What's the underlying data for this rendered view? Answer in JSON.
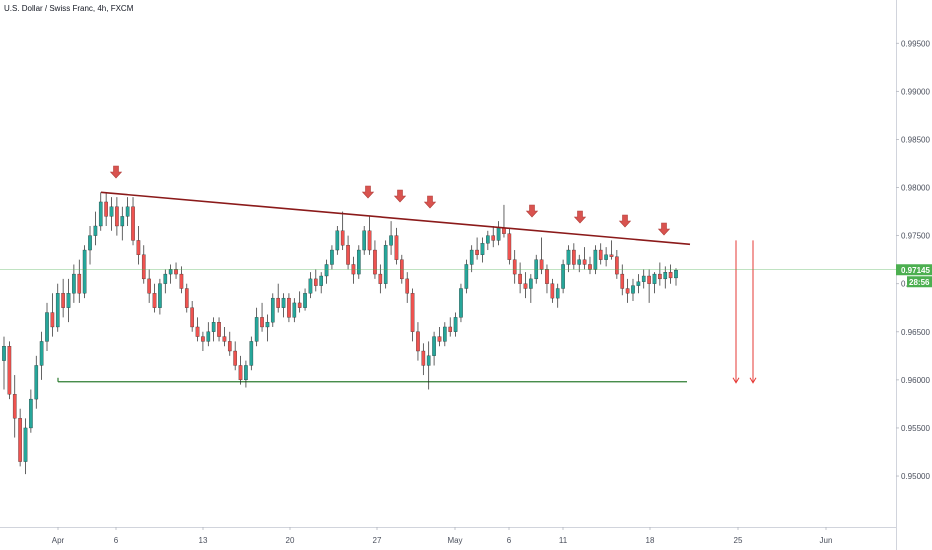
{
  "title": "U.S. Dollar / Swiss Franc, 4h, FXCM",
  "chart_data": {
    "type": "candlestick",
    "title": "U.S. Dollar / Swiss Franc, 4h, FXCM",
    "y_ticks": [
      "0.99500",
      "0.99000",
      "0.98500",
      "0.98000",
      "0.97500",
      "0.97000",
      "0.96500",
      "0.96000",
      "0.95500",
      "0.95000"
    ],
    "ylim": [
      0.9447,
      0.9995
    ],
    "x_ticks": [
      "Apr",
      "6",
      "13",
      "20",
      "27",
      "May",
      "6",
      "11",
      "18",
      "25",
      "Jun"
    ],
    "current_price": "0.97145",
    "countdown": "28:56",
    "colors": {
      "up": "#26a69a",
      "down": "#ef5350",
      "wick": "#222222"
    },
    "annotations": {
      "resistance_line": {
        "from": [
          "Apr 5",
          0.9795
        ],
        "to": [
          "May 21",
          0.9741
        ],
        "color": "#8b1a1a"
      },
      "support_line": {
        "from": [
          "Apr 1",
          0.9598
        ],
        "to": [
          "May 21",
          0.9598
        ],
        "color": "#2e7d32"
      },
      "top_markers": [
        "Apr 6",
        "Apr 26",
        "Apr 28",
        "Apr 30",
        "May 8",
        "May 13",
        "May 16",
        "May 19"
      ],
      "down_arrows": [
        [
          "May 24",
          0.9745,
          0.9597
        ],
        [
          "May 25",
          0.9745,
          0.9597
        ]
      ]
    },
    "ohlc": [
      [
        0.962,
        0.9645,
        0.959,
        0.9635
      ],
      [
        0.9635,
        0.964,
        0.958,
        0.9585
      ],
      [
        0.9585,
        0.9605,
        0.954,
        0.956
      ],
      [
        0.956,
        0.957,
        0.951,
        0.9515
      ],
      [
        0.9515,
        0.956,
        0.9502,
        0.955
      ],
      [
        0.955,
        0.959,
        0.9545,
        0.958
      ],
      [
        0.958,
        0.9625,
        0.957,
        0.9615
      ],
      [
        0.9615,
        0.965,
        0.96,
        0.964
      ],
      [
        0.964,
        0.968,
        0.963,
        0.967
      ],
      [
        0.967,
        0.969,
        0.9645,
        0.9655
      ],
      [
        0.9655,
        0.97,
        0.965,
        0.969
      ],
      [
        0.969,
        0.9705,
        0.9665,
        0.9675
      ],
      [
        0.9675,
        0.9705,
        0.966,
        0.969
      ],
      [
        0.969,
        0.972,
        0.968,
        0.971
      ],
      [
        0.971,
        0.9725,
        0.968,
        0.969
      ],
      [
        0.969,
        0.974,
        0.9685,
        0.9735
      ],
      [
        0.9735,
        0.976,
        0.972,
        0.975
      ],
      [
        0.975,
        0.9775,
        0.974,
        0.976
      ],
      [
        0.976,
        0.9795,
        0.9755,
        0.9785
      ],
      [
        0.9785,
        0.9795,
        0.976,
        0.977
      ],
      [
        0.977,
        0.979,
        0.9755,
        0.978
      ],
      [
        0.978,
        0.979,
        0.975,
        0.976
      ],
      [
        0.976,
        0.978,
        0.9745,
        0.977
      ],
      [
        0.977,
        0.979,
        0.976,
        0.978
      ],
      [
        0.978,
        0.979,
        0.974,
        0.9745
      ],
      [
        0.9745,
        0.976,
        0.972,
        0.973
      ],
      [
        0.973,
        0.974,
        0.97,
        0.9705
      ],
      [
        0.9705,
        0.9715,
        0.968,
        0.969
      ],
      [
        0.969,
        0.97,
        0.967,
        0.9675
      ],
      [
        0.9675,
        0.9705,
        0.9668,
        0.97
      ],
      [
        0.97,
        0.9715,
        0.969,
        0.971
      ],
      [
        0.971,
        0.972,
        0.97,
        0.9715
      ],
      [
        0.9715,
        0.9722,
        0.9705,
        0.971
      ],
      [
        0.971,
        0.9718,
        0.969,
        0.9695
      ],
      [
        0.9695,
        0.97,
        0.967,
        0.9675
      ],
      [
        0.9675,
        0.9682,
        0.965,
        0.9655
      ],
      [
        0.9655,
        0.9665,
        0.964,
        0.9645
      ],
      [
        0.9645,
        0.965,
        0.963,
        0.964
      ],
      [
        0.964,
        0.966,
        0.9635,
        0.965
      ],
      [
        0.965,
        0.9665,
        0.964,
        0.966
      ],
      [
        0.966,
        0.9665,
        0.964,
        0.9645
      ],
      [
        0.9645,
        0.9655,
        0.9635,
        0.964
      ],
      [
        0.964,
        0.965,
        0.9625,
        0.963
      ],
      [
        0.963,
        0.964,
        0.961,
        0.9615
      ],
      [
        0.9615,
        0.9625,
        0.9595,
        0.96
      ],
      [
        0.96,
        0.962,
        0.9592,
        0.9615
      ],
      [
        0.9615,
        0.9645,
        0.961,
        0.964
      ],
      [
        0.964,
        0.9675,
        0.9635,
        0.9665
      ],
      [
        0.9665,
        0.968,
        0.965,
        0.9655
      ],
      [
        0.9655,
        0.9668,
        0.964,
        0.966
      ],
      [
        0.966,
        0.969,
        0.9655,
        0.9685
      ],
      [
        0.9685,
        0.97,
        0.967,
        0.9675
      ],
      [
        0.9675,
        0.969,
        0.9665,
        0.9685
      ],
      [
        0.9685,
        0.969,
        0.966,
        0.9665
      ],
      [
        0.9665,
        0.9685,
        0.966,
        0.968
      ],
      [
        0.968,
        0.9692,
        0.967,
        0.9675
      ],
      [
        0.9675,
        0.9695,
        0.9672,
        0.969
      ],
      [
        0.969,
        0.9712,
        0.9685,
        0.9705
      ],
      [
        0.9705,
        0.9715,
        0.9692,
        0.9698
      ],
      [
        0.9698,
        0.9712,
        0.969,
        0.9708
      ],
      [
        0.9708,
        0.9725,
        0.97,
        0.972
      ],
      [
        0.972,
        0.974,
        0.9715,
        0.9735
      ],
      [
        0.9735,
        0.976,
        0.973,
        0.9755
      ],
      [
        0.9755,
        0.9775,
        0.9735,
        0.974
      ],
      [
        0.974,
        0.975,
        0.9715,
        0.972
      ],
      [
        0.972,
        0.9728,
        0.97,
        0.971
      ],
      [
        0.971,
        0.974,
        0.9705,
        0.9735
      ],
      [
        0.9735,
        0.976,
        0.973,
        0.9755
      ],
      [
        0.9755,
        0.977,
        0.973,
        0.9735
      ],
      [
        0.9735,
        0.9745,
        0.9705,
        0.971
      ],
      [
        0.971,
        0.972,
        0.969,
        0.97
      ],
      [
        0.97,
        0.9745,
        0.9695,
        0.974
      ],
      [
        0.974,
        0.9765,
        0.973,
        0.975
      ],
      [
        0.975,
        0.9758,
        0.972,
        0.9725
      ],
      [
        0.9725,
        0.973,
        0.97,
        0.9705
      ],
      [
        0.9705,
        0.9712,
        0.968,
        0.969
      ],
      [
        0.969,
        0.9695,
        0.964,
        0.965
      ],
      [
        0.965,
        0.966,
        0.962,
        0.963
      ],
      [
        0.963,
        0.9638,
        0.9605,
        0.9615
      ],
      [
        0.9615,
        0.964,
        0.959,
        0.9625
      ],
      [
        0.9625,
        0.965,
        0.9615,
        0.9645
      ],
      [
        0.9645,
        0.9655,
        0.9635,
        0.964
      ],
      [
        0.964,
        0.966,
        0.9635,
        0.9655
      ],
      [
        0.9655,
        0.9665,
        0.9645,
        0.965
      ],
      [
        0.965,
        0.967,
        0.9645,
        0.9665
      ],
      [
        0.9665,
        0.97,
        0.966,
        0.9695
      ],
      [
        0.9695,
        0.9725,
        0.969,
        0.972
      ],
      [
        0.972,
        0.974,
        0.9712,
        0.9735
      ],
      [
        0.9735,
        0.9748,
        0.9725,
        0.973
      ],
      [
        0.973,
        0.9748,
        0.9722,
        0.9742
      ],
      [
        0.9742,
        0.9755,
        0.9735,
        0.975
      ],
      [
        0.975,
        0.976,
        0.9738,
        0.9745
      ],
      [
        0.9745,
        0.9765,
        0.974,
        0.9758
      ],
      [
        0.9758,
        0.9782,
        0.9748,
        0.9752
      ],
      [
        0.9752,
        0.9758,
        0.972,
        0.9725
      ],
      [
        0.9725,
        0.9735,
        0.97,
        0.971
      ],
      [
        0.971,
        0.9722,
        0.969,
        0.97
      ],
      [
        0.97,
        0.9712,
        0.9685,
        0.9695
      ],
      [
        0.9695,
        0.971,
        0.968,
        0.9705
      ],
      [
        0.9705,
        0.973,
        0.97,
        0.9725
      ],
      [
        0.9725,
        0.9748,
        0.971,
        0.9715
      ],
      [
        0.9715,
        0.972,
        0.969,
        0.97
      ],
      [
        0.97,
        0.9705,
        0.968,
        0.9685
      ],
      [
        0.9685,
        0.97,
        0.9675,
        0.9695
      ],
      [
        0.9695,
        0.9725,
        0.969,
        0.972
      ],
      [
        0.972,
        0.974,
        0.9712,
        0.9735
      ],
      [
        0.9735,
        0.9742,
        0.9715,
        0.972
      ],
      [
        0.972,
        0.973,
        0.9712,
        0.9725
      ],
      [
        0.9725,
        0.9738,
        0.9715,
        0.972
      ],
      [
        0.972,
        0.9728,
        0.971,
        0.9715
      ],
      [
        0.9715,
        0.974,
        0.971,
        0.9735
      ],
      [
        0.9735,
        0.9742,
        0.972,
        0.9725
      ],
      [
        0.9725,
        0.9738,
        0.9718,
        0.973
      ],
      [
        0.973,
        0.9745,
        0.9725,
        0.9728
      ],
      [
        0.9728,
        0.9735,
        0.9705,
        0.971
      ],
      [
        0.971,
        0.972,
        0.9688,
        0.9695
      ],
      [
        0.9695,
        0.9705,
        0.968,
        0.969
      ],
      [
        0.969,
        0.9705,
        0.9682,
        0.9698
      ],
      [
        0.9698,
        0.971,
        0.969,
        0.9702
      ],
      [
        0.9702,
        0.9715,
        0.9695,
        0.9708
      ],
      [
        0.9708,
        0.9715,
        0.968,
        0.97
      ],
      [
        0.97,
        0.9712,
        0.969,
        0.971
      ],
      [
        0.971,
        0.9722,
        0.9698,
        0.9705
      ],
      [
        0.9705,
        0.9718,
        0.9695,
        0.9712
      ],
      [
        0.9712,
        0.972,
        0.97,
        0.9706
      ],
      [
        0.9706,
        0.9716,
        0.9698,
        0.9714
      ]
    ]
  }
}
